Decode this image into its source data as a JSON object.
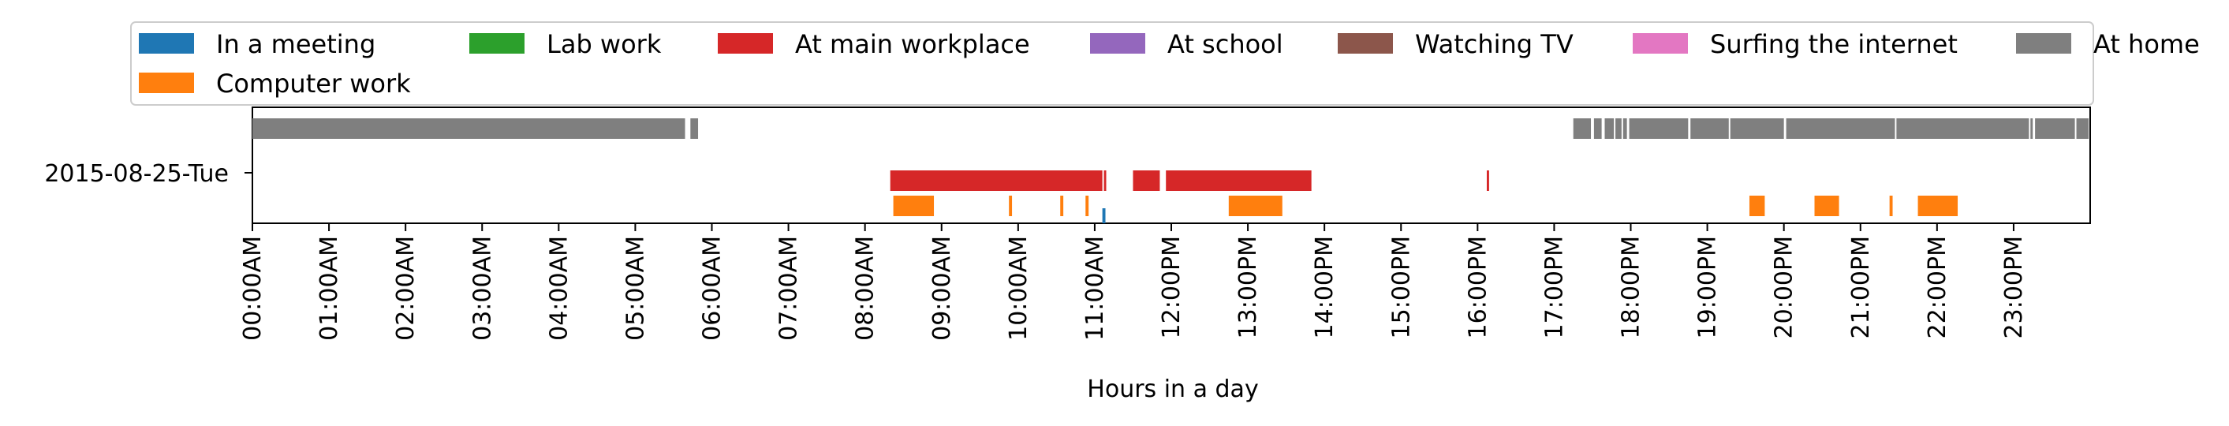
{
  "chart_data": {
    "type": "timeline",
    "title": "",
    "xlabel": "Hours in a day",
    "ylabel": "",
    "xlim": [
      0,
      24
    ],
    "y_categories": [
      "2015-08-25-Tue"
    ],
    "x_ticks": [
      {
        "value": 0,
        "label": "00:00AM"
      },
      {
        "value": 1,
        "label": "01:00AM"
      },
      {
        "value": 2,
        "label": "02:00AM"
      },
      {
        "value": 3,
        "label": "03:00AM"
      },
      {
        "value": 4,
        "label": "04:00AM"
      },
      {
        "value": 5,
        "label": "05:00AM"
      },
      {
        "value": 6,
        "label": "06:00AM"
      },
      {
        "value": 7,
        "label": "07:00AM"
      },
      {
        "value": 8,
        "label": "08:00AM"
      },
      {
        "value": 9,
        "label": "09:00AM"
      },
      {
        "value": 10,
        "label": "10:00AM"
      },
      {
        "value": 11,
        "label": "11:00AM"
      },
      {
        "value": 12,
        "label": "12:00PM"
      },
      {
        "value": 13,
        "label": "13:00PM"
      },
      {
        "value": 14,
        "label": "14:00PM"
      },
      {
        "value": 15,
        "label": "15:00PM"
      },
      {
        "value": 16,
        "label": "16:00PM"
      },
      {
        "value": 17,
        "label": "17:00PM"
      },
      {
        "value": 18,
        "label": "18:00PM"
      },
      {
        "value": 19,
        "label": "19:00PM"
      },
      {
        "value": 20,
        "label": "20:00PM"
      },
      {
        "value": 21,
        "label": "21:00PM"
      },
      {
        "value": 22,
        "label": "22:00PM"
      },
      {
        "value": 23,
        "label": "23:00PM"
      }
    ],
    "legend": {
      "placement": "top",
      "entries": [
        {
          "name": "In a meeting",
          "color": "#1f77b4"
        },
        {
          "name": "Lab work",
          "color": "#2ca02c"
        },
        {
          "name": "At main workplace",
          "color": "#d62728"
        },
        {
          "name": "At school",
          "color": "#9467bd"
        },
        {
          "name": "Watching TV",
          "color": "#8c564b"
        },
        {
          "name": "Surfing the internet",
          "color": "#e377c2"
        },
        {
          "name": "At home",
          "color": "#7f7f7f"
        },
        {
          "name": "Computer work",
          "color": "#ff7f0e"
        }
      ]
    },
    "series": [
      {
        "name": "At home",
        "color": "#7f7f7f",
        "lane": "top",
        "intervals": [
          [
            0.0,
            5.65
          ],
          [
            5.72,
            5.82
          ],
          [
            17.25,
            17.48
          ],
          [
            17.52,
            17.62
          ],
          [
            17.66,
            17.78
          ],
          [
            17.8,
            17.88
          ],
          [
            17.9,
            17.95
          ],
          [
            17.98,
            18.75
          ],
          [
            18.78,
            19.28
          ],
          [
            19.3,
            20.0
          ],
          [
            20.03,
            21.45
          ],
          [
            21.47,
            23.2
          ],
          [
            23.22,
            23.25
          ],
          [
            23.28,
            23.8
          ],
          [
            23.82,
            23.98
          ]
        ]
      },
      {
        "name": "At main workplace",
        "color": "#d62728",
        "lane": "middle",
        "intervals": [
          [
            8.33,
            11.1
          ],
          [
            11.12,
            11.15
          ],
          [
            11.5,
            11.85
          ],
          [
            11.93,
            13.83
          ],
          [
            16.12,
            16.15
          ]
        ]
      },
      {
        "name": "Computer work",
        "color": "#ff7f0e",
        "lane": "bottom",
        "intervals": [
          [
            8.37,
            8.9
          ],
          [
            9.88,
            9.92
          ],
          [
            10.55,
            10.59
          ],
          [
            10.88,
            10.92
          ],
          [
            12.75,
            13.45
          ],
          [
            19.55,
            19.75
          ],
          [
            20.4,
            20.72
          ],
          [
            21.38,
            21.42
          ],
          [
            21.75,
            22.27
          ]
        ]
      },
      {
        "name": "In a meeting",
        "color": "#1f77b4",
        "lane": "bottom-lower",
        "intervals": [
          [
            11.1,
            11.14
          ]
        ]
      }
    ]
  }
}
